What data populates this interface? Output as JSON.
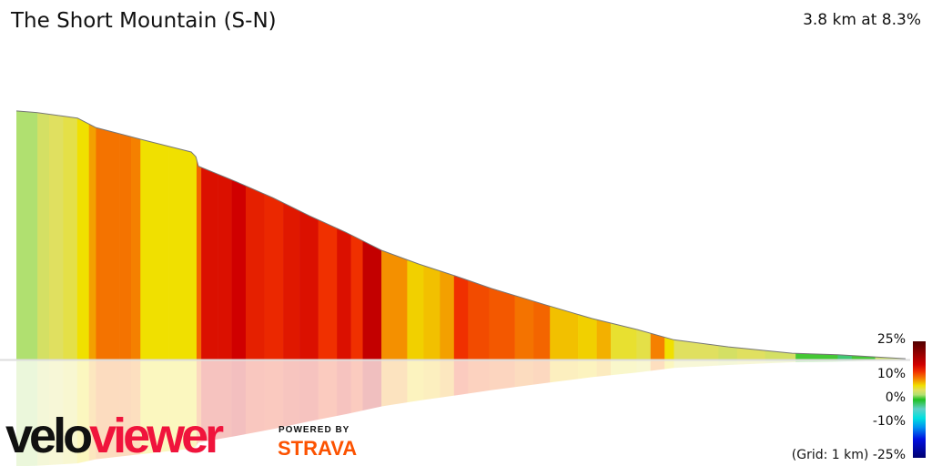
{
  "header": {
    "title": "The Short Mountain (S-N)",
    "summary": "3.8 km at 8.3%"
  },
  "branding": {
    "logo_part1": "velo",
    "logo_part2": "viewer",
    "powered_by": "POWERED BY",
    "strava": "STRAVA",
    "colors": {
      "velo": "#111111",
      "viewer": "#f0143c",
      "strava": "#fc5200"
    }
  },
  "chart_data": {
    "type": "area",
    "title": "The Short Mountain (S-N)",
    "distance_km": 3.8,
    "average_gradient_pct": 8.3,
    "grid_note": "(Grid: 1 km)",
    "x_unit": "km",
    "y_unit": "m",
    "profile": [
      [
        0,
        315
      ],
      [
        0.086,
        313
      ],
      [
        0.261,
        306
      ],
      [
        0.339,
        294
      ],
      [
        0.533,
        279
      ],
      [
        0.747,
        263
      ],
      [
        0.767,
        257
      ],
      [
        0.778,
        245
      ],
      [
        0.942,
        225
      ],
      [
        1.097,
        205
      ],
      [
        1.253,
        182
      ],
      [
        1.409,
        161
      ],
      [
        1.564,
        138
      ],
      [
        1.72,
        121
      ],
      [
        1.875,
        106
      ],
      [
        2.031,
        90
      ],
      [
        2.265,
        69
      ],
      [
        2.459,
        52
      ],
      [
        2.654,
        38
      ],
      [
        2.809,
        25
      ],
      [
        3.043,
        16
      ],
      [
        3.315,
        8
      ],
      [
        3.51,
        6
      ],
      [
        3.8,
        1
      ]
    ],
    "segment_boundaries_km": [
      0,
      0.09,
      0.14,
      0.2,
      0.26,
      0.31,
      0.34,
      0.44,
      0.49,
      0.53,
      0.65,
      0.77,
      0.79,
      0.86,
      0.92,
      0.98,
      1.06,
      1.14,
      1.21,
      1.29,
      1.37,
      1.43,
      1.48,
      1.56,
      1.67,
      1.74,
      1.81,
      1.87,
      1.93,
      2.02,
      2.13,
      2.21,
      2.28,
      2.4,
      2.48,
      2.54,
      2.65,
      2.71,
      2.77,
      2.81,
      3.0,
      3.08,
      3.2,
      3.33,
      3.51,
      3.57,
      3.67,
      3.8
    ],
    "segment_gradients_pct": [
      2,
      3.5,
      4,
      4.5,
      6,
      8,
      9.5,
      9.5,
      9,
      6,
      6,
      10,
      14,
      14,
      15,
      13,
      12.5,
      13.5,
      14,
      12,
      14,
      12,
      16,
      8.5,
      6.5,
      7,
      8,
      12,
      11,
      10.5,
      9.5,
      10,
      7,
      6.5,
      7.5,
      5,
      4.5,
      9,
      6,
      4,
      3.5,
      4,
      3.5,
      0.5,
      -2,
      0.5,
      3
    ],
    "colorbar": {
      "range": [
        -25,
        25
      ],
      "tick_labels": [
        "25%",
        "10%",
        "0%",
        "-10%",
        "-25%"
      ],
      "tick_values": [
        25,
        10,
        0,
        -10,
        -25
      ],
      "stops": [
        [
          -25,
          "#000070"
        ],
        [
          -17,
          "#0010e0"
        ],
        [
          -12,
          "#0090f0"
        ],
        [
          -8,
          "#00e0e0"
        ],
        [
          -4,
          "#60d0c8"
        ],
        [
          0,
          "#20c020"
        ],
        [
          2,
          "#b0e070"
        ],
        [
          4,
          "#e0e060"
        ],
        [
          6,
          "#f0e000"
        ],
        [
          9,
          "#f58000"
        ],
        [
          12,
          "#f03000"
        ],
        [
          15,
          "#d00000"
        ],
        [
          25,
          "#500000"
        ]
      ]
    }
  }
}
